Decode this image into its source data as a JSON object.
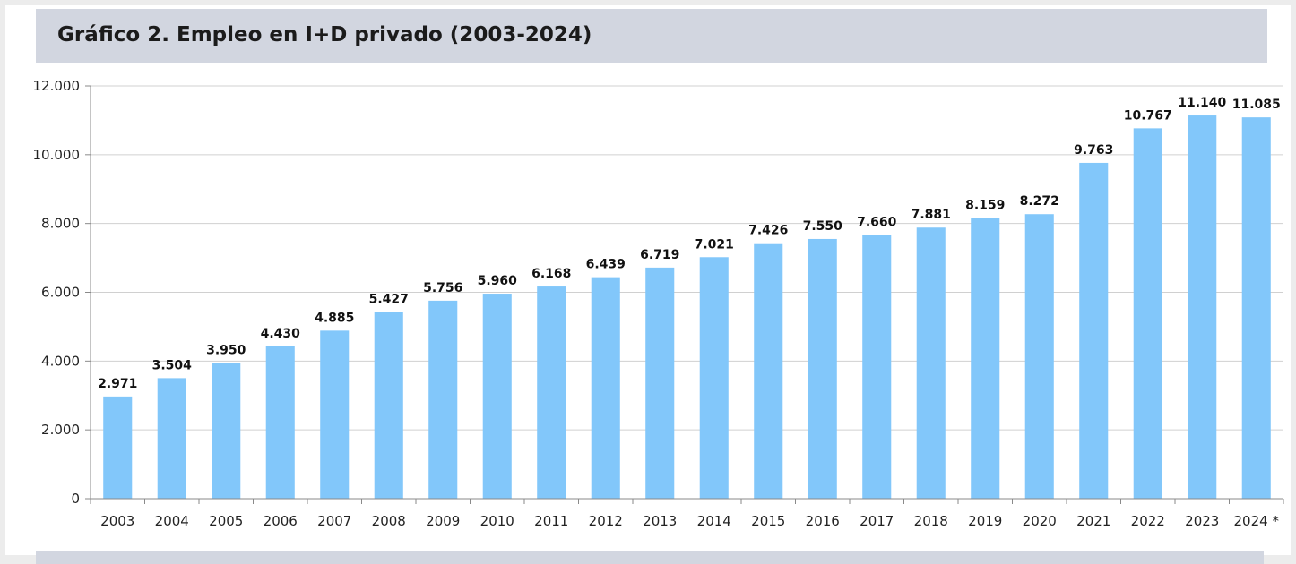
{
  "page": {
    "title": "Gráfico 2. Empleo en I+D privado (2003-2024)"
  },
  "colors": {
    "bar": "#82c7fa",
    "grid": "#d0d0d0",
    "axis": "#8a8a8a",
    "title_band": "#d2d6e0"
  },
  "chart_data": {
    "type": "bar",
    "title": "Gráfico 2. Empleo en I+D privado (2003-2024)",
    "xlabel": "",
    "ylabel": "",
    "categories": [
      "2003",
      "2004",
      "2005",
      "2006",
      "2007",
      "2008",
      "2009",
      "2010",
      "2011",
      "2012",
      "2013",
      "2014",
      "2015",
      "2016",
      "2017",
      "2018",
      "2019",
      "2020",
      "2021",
      "2022",
      "2023",
      "2024 *"
    ],
    "values": [
      2971,
      3504,
      3950,
      4430,
      4885,
      5427,
      5756,
      5960,
      6168,
      6439,
      6719,
      7021,
      7426,
      7550,
      7660,
      7881,
      8159,
      8272,
      9763,
      10767,
      11140,
      11085
    ],
    "data_labels": [
      "2.971",
      "3.504",
      "3.950",
      "4.430",
      "4.885",
      "5.427",
      "5.756",
      "5.960",
      "6.168",
      "6.439",
      "6.719",
      "7.021",
      "7.426",
      "7.550",
      "7.660",
      "7.881",
      "8.159",
      "8.272",
      "9.763",
      "10.767",
      "11.140",
      "11.085"
    ],
    "ylim": [
      0,
      12000
    ],
    "yticks": [
      0,
      2000,
      4000,
      6000,
      8000,
      10000,
      12000
    ],
    "ytick_labels": [
      "0",
      "2.000",
      "4.000",
      "6.000",
      "8.000",
      "10.000",
      "12.000"
    ],
    "grid": true,
    "legend": "none"
  }
}
